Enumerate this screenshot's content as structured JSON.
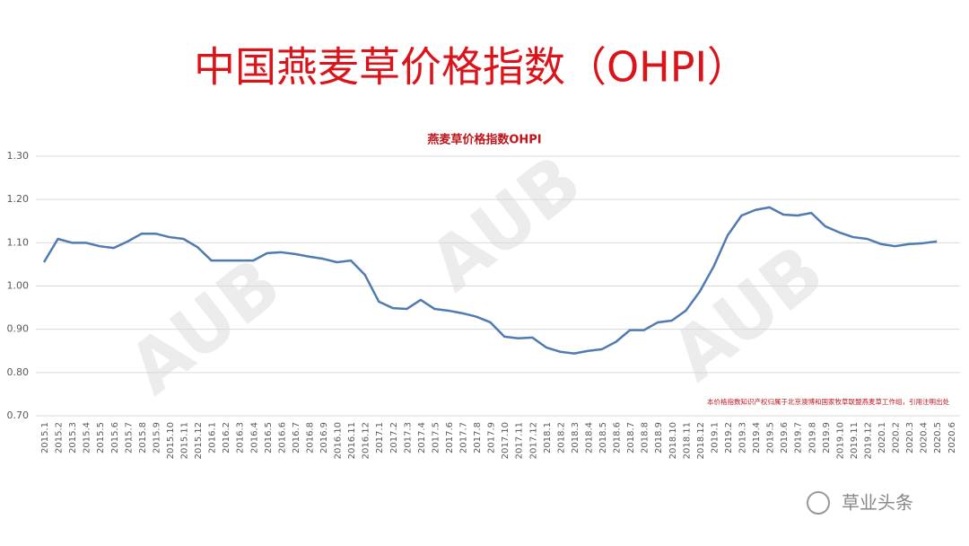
{
  "chart_data": {
    "type": "line",
    "page_title": "中国燕麦草价格指数（OHPI）",
    "title": "燕麦草价格指数OHPI",
    "note": "本价格指数知识产权归属于北京澳博和国家牧草联盟燕麦草工作组，引用注明出处",
    "watermark": "AUB",
    "source_badge": "草业头条",
    "categories": [
      "2015.1",
      "2015.2",
      "2015.3",
      "2015.4",
      "2015.5",
      "2015.6",
      "2015.7",
      "2015.8",
      "2015.9",
      "2015.10",
      "2015.11",
      "2015.12",
      "2016.1",
      "2016.2",
      "2016.3",
      "2016.4",
      "2016.5",
      "2016.6",
      "2016.7",
      "2016.8",
      "2016.9",
      "2016.10",
      "2016.11",
      "2016.12",
      "2017.1",
      "2017.2",
      "2017.3",
      "2017.4",
      "2017.5",
      "2017.6",
      "2017.7",
      "2017.8",
      "2017.9",
      "2017.10",
      "2017.11",
      "2017.12",
      "2018.1",
      "2018.2",
      "2018.3",
      "2018.4",
      "2018.5",
      "2018.6",
      "2018.7",
      "2018.8",
      "2018.9",
      "2018.10",
      "2018.11",
      "2018.12",
      "2019.1",
      "2019.2",
      "2019.3",
      "2019.4",
      "2019.5",
      "2019.6",
      "2019.7",
      "2019.8",
      "2019.9",
      "2019.10",
      "2019.11",
      "2019.12",
      "2020.1",
      "2020.2",
      "2020.3",
      "2020.4",
      "2020.5",
      "2020.6"
    ],
    "series": [
      {
        "name": "OHPI",
        "color": "#4f7bb0",
        "values": [
          1.055,
          1.109,
          1.1,
          1.1,
          1.092,
          1.088,
          1.103,
          1.121,
          1.121,
          1.113,
          1.109,
          1.09,
          1.059,
          1.059,
          1.059,
          1.059,
          1.076,
          1.078,
          1.074,
          1.068,
          1.063,
          1.055,
          1.059,
          1.026,
          0.964,
          0.949,
          0.947,
          0.968,
          0.947,
          0.943,
          0.937,
          0.929,
          0.916,
          0.883,
          0.879,
          0.881,
          0.858,
          0.848,
          0.844,
          0.85,
          0.854,
          0.871,
          0.898,
          0.898,
          0.916,
          0.92,
          0.943,
          0.987,
          1.045,
          1.117,
          1.163,
          1.176,
          1.182,
          1.165,
          1.163,
          1.169,
          1.138,
          1.124,
          1.113,
          1.109,
          1.097,
          1.092,
          1.097,
          1.099,
          1.103,
          null
        ]
      }
    ],
    "ylim": [
      0.7,
      1.3
    ],
    "yticks": [
      {
        "value": 0.7,
        "label": "0.70"
      },
      {
        "value": 0.8,
        "label": "0.80"
      },
      {
        "value": 0.9,
        "label": "0.90"
      },
      {
        "value": 1.0,
        "label": "1.00"
      },
      {
        "value": 1.1,
        "label": "1.10"
      },
      {
        "value": 1.2,
        "label": "1.20"
      },
      {
        "value": 1.3,
        "label": "1.30"
      }
    ],
    "grid": true
  }
}
